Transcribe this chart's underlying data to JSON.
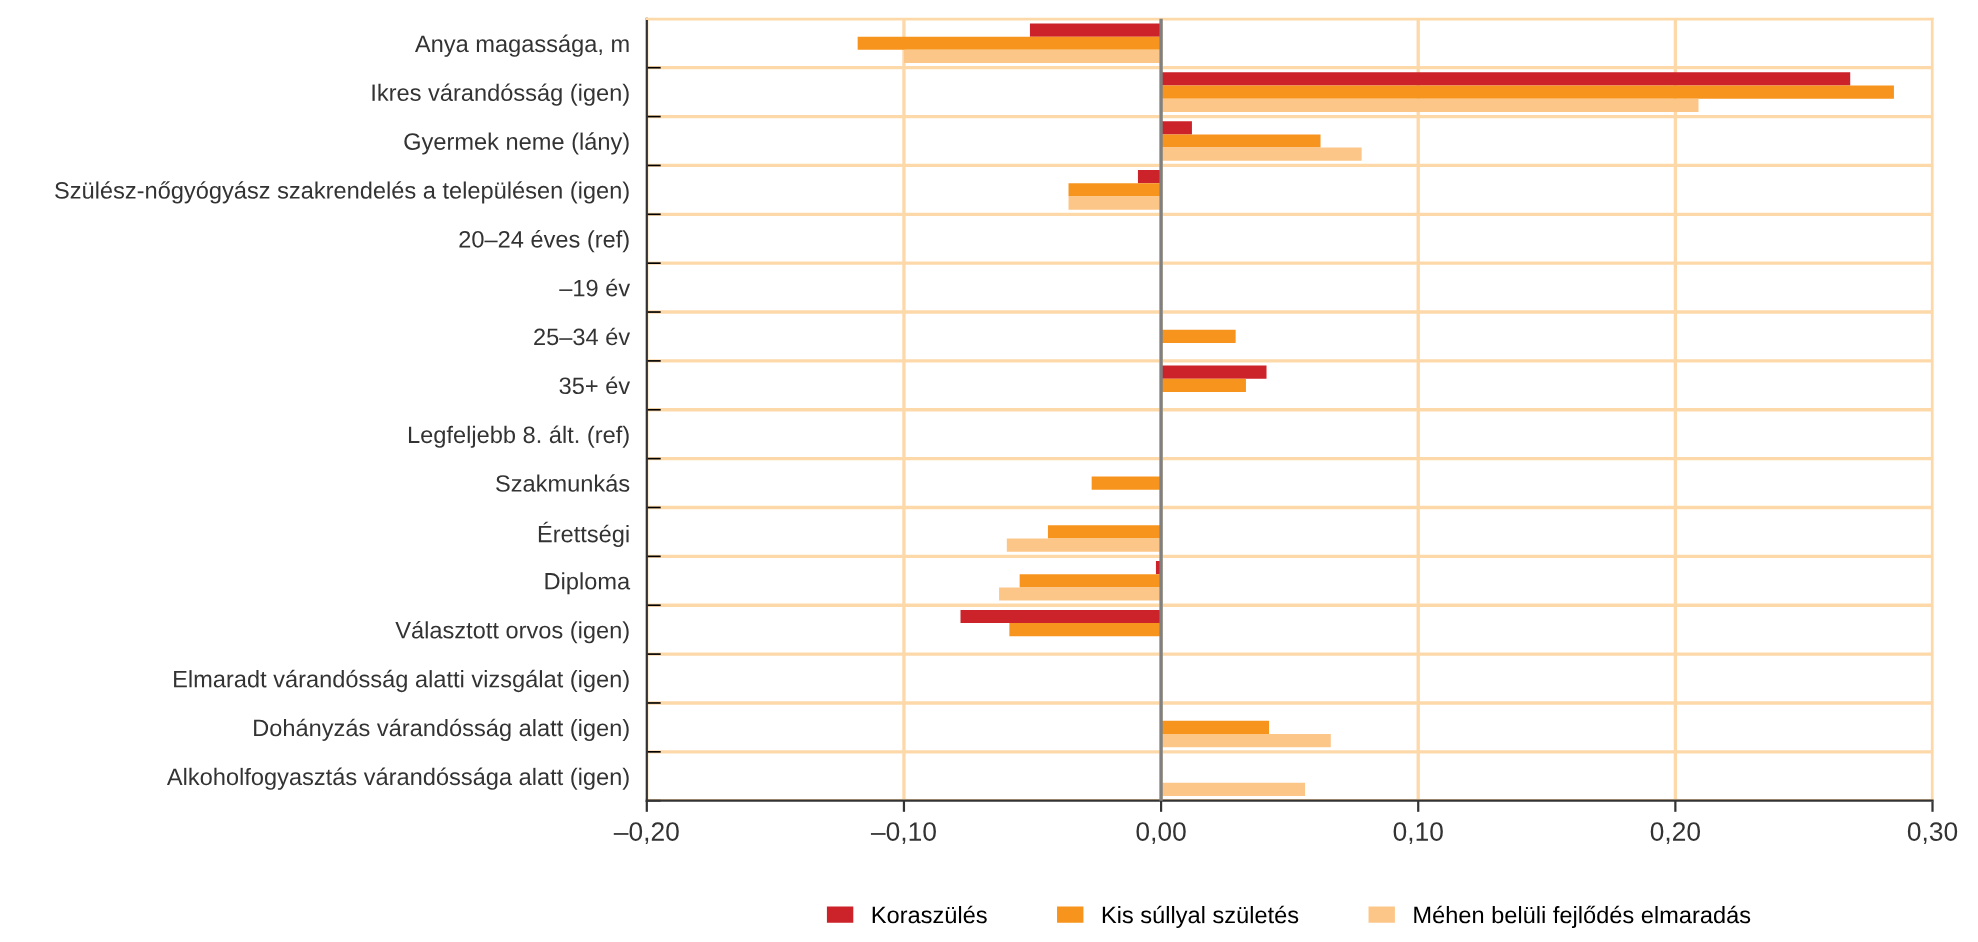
{
  "chart_data": {
    "type": "bar",
    "orientation": "horizontal",
    "categories": [
      "Anya magassága, m",
      "Ikres várandósság (igen)",
      "Gyermek neme (lány)",
      "Szülész-nőgyógyász szakrendelés a településen (igen)",
      "20–24 éves (ref)",
      "–19 év",
      "25–34 év",
      "35+ év",
      "Legfeljebb 8. ált. (ref)",
      "Szakmunkás",
      "Érettségi",
      "Diploma",
      "Választott orvos (igen)",
      "Elmaradt várandósság alatti vizsgálat (igen)",
      "Dohányzás várandósság alatt (igen)",
      "Alkoholfogyasztás várandóssága alatt (igen)"
    ],
    "series": [
      {
        "name": "Koraszülés",
        "color": "#cc2229",
        "values": [
          -0.051,
          0.268,
          0.012,
          -0.009,
          null,
          null,
          null,
          0.041,
          null,
          null,
          null,
          -0.002,
          -0.078,
          null,
          null,
          null
        ]
      },
      {
        "name": "Kis súllyal születés",
        "color": "#f7941d",
        "values": [
          -0.118,
          0.285,
          0.062,
          -0.036,
          null,
          null,
          0.029,
          0.033,
          null,
          -0.027,
          -0.044,
          -0.055,
          -0.059,
          null,
          0.042,
          null
        ]
      },
      {
        "name": "Méhen belüli fejlődés elmaradás",
        "color": "#fdc689",
        "values": [
          -0.1,
          0.209,
          0.078,
          -0.036,
          null,
          null,
          null,
          null,
          null,
          null,
          -0.06,
          -0.063,
          null,
          null,
          0.066,
          0.056
        ]
      }
    ],
    "xlim": [
      -0.2,
      0.3
    ],
    "xticks": [
      {
        "value": -0.2,
        "label": "–0,20"
      },
      {
        "value": -0.1,
        "label": "–0,10"
      },
      {
        "value": 0,
        "label": "0,00"
      },
      {
        "value": 0.1,
        "label": "0,10"
      },
      {
        "value": 0.2,
        "label": "0,20"
      },
      {
        "value": 0.3,
        "label": "0,30"
      }
    ],
    "ref_lines": [
      {
        "axis": "x",
        "value": 0,
        "color": "#808080"
      }
    ],
    "grid": true,
    "legend": "bottom"
  }
}
